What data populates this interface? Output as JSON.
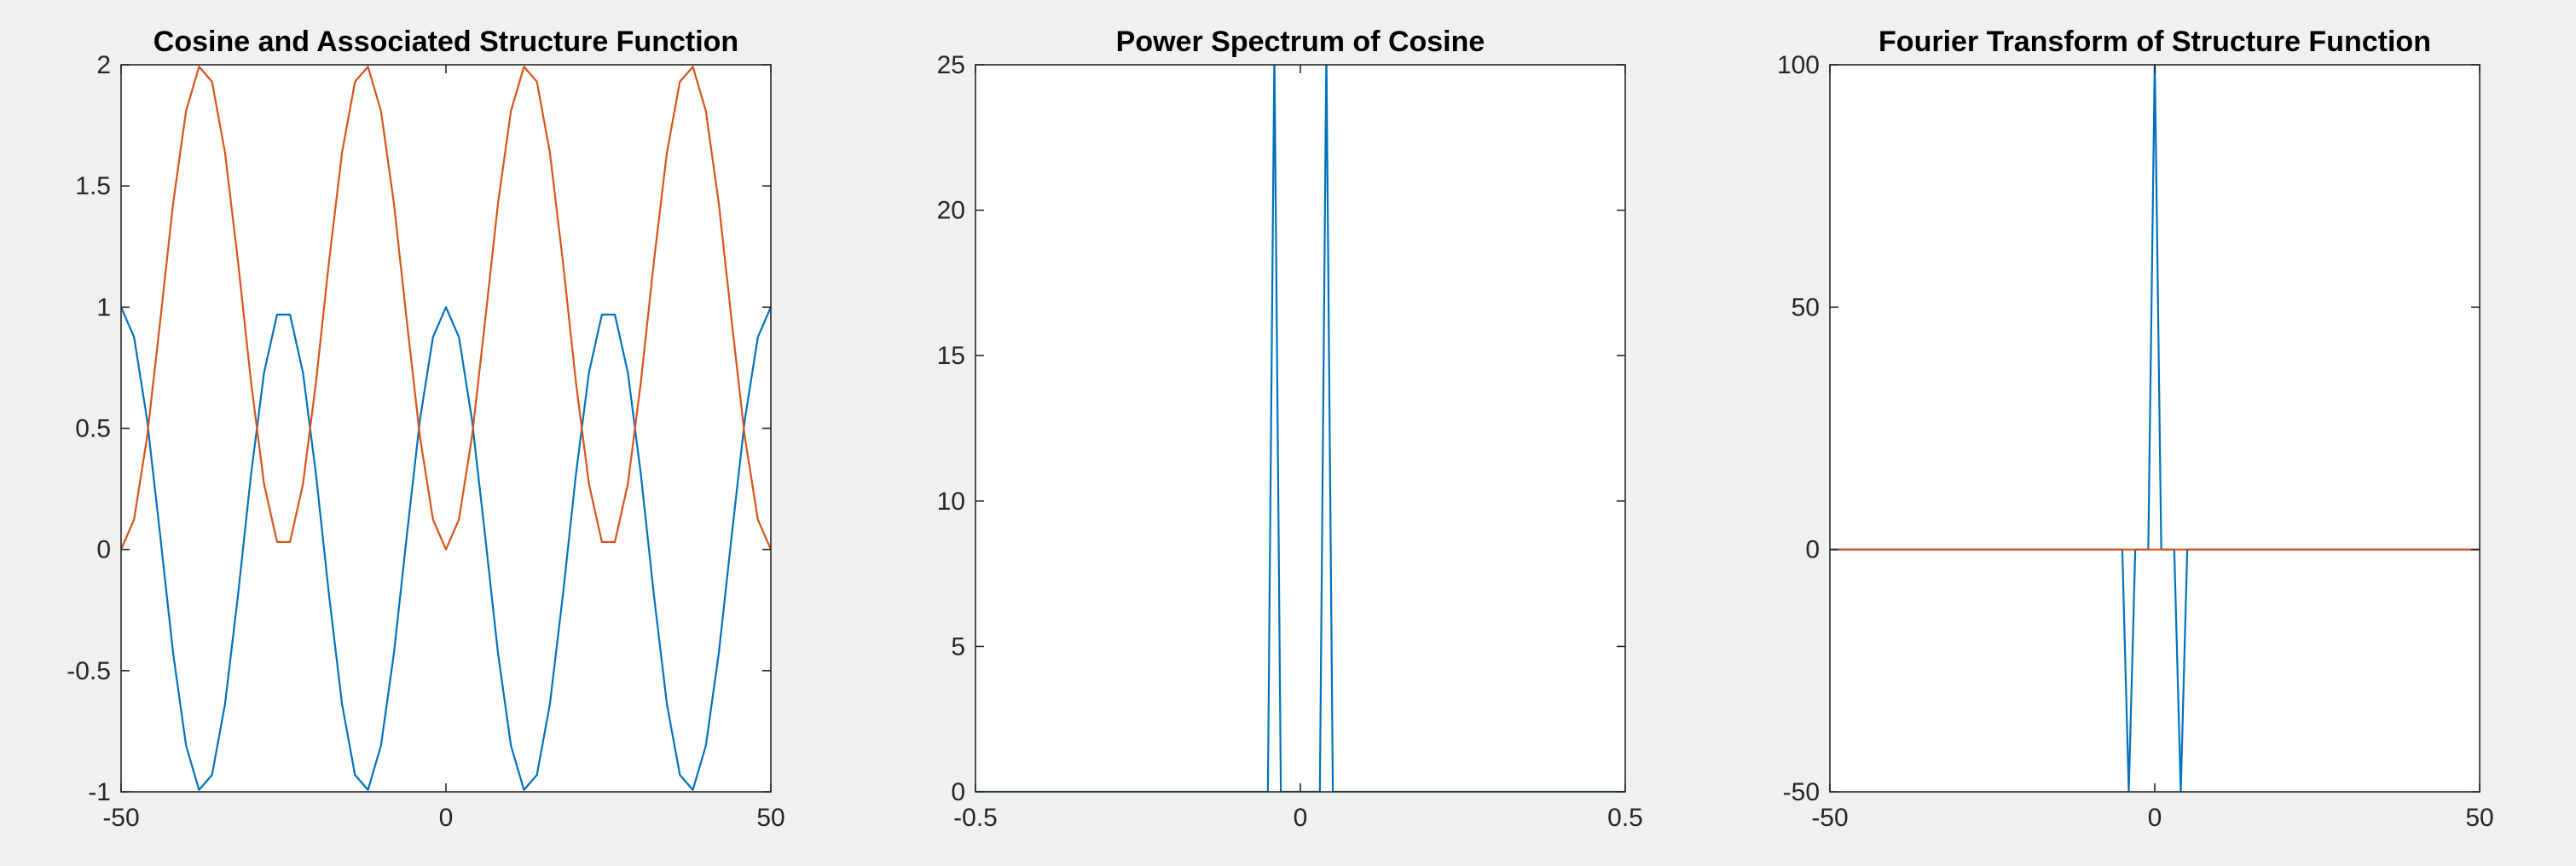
{
  "chart_data": [
    {
      "type": "line",
      "title": "Cosine and Associated Structure Function",
      "xlabel": "",
      "ylabel": "",
      "xlim": [
        -50,
        50
      ],
      "ylim": [
        -1,
        2
      ],
      "xticks": [
        -50,
        0,
        50
      ],
      "yticks": [
        -1,
        -0.5,
        0,
        0.5,
        1,
        1.5,
        2
      ],
      "xtick_labels": [
        "-50",
        "0",
        "50"
      ],
      "ytick_labels": [
        "-1",
        "-0.5",
        "0",
        "0.5",
        "1",
        "1.5",
        "2"
      ],
      "grid": false,
      "x": [
        -50,
        -48,
        -46,
        -44,
        -42,
        -40,
        -38,
        -36,
        -34,
        -32,
        -30,
        -28,
        -26,
        -24,
        -22,
        -20,
        -18,
        -16,
        -14,
        -12,
        -10,
        -8,
        -6,
        -4,
        -2,
        0,
        2,
        4,
        6,
        8,
        10,
        12,
        14,
        16,
        18,
        20,
        22,
        24,
        26,
        28,
        30,
        32,
        34,
        36,
        38,
        40,
        42,
        44,
        46,
        48,
        50
      ],
      "series": [
        {
          "color": "#0072BD",
          "values": [
            1,
            0.876,
            0.536,
            0.063,
            -0.426,
            -0.809,
            -0.992,
            -0.93,
            -0.637,
            -0.187,
            0.309,
            0.729,
            0.969,
            0.969,
            0.729,
            0.309,
            -0.187,
            -0.637,
            -0.93,
            -0.992,
            -0.809,
            -0.426,
            0.063,
            0.536,
            0.876,
            1,
            0.876,
            0.536,
            0.063,
            -0.426,
            -0.809,
            -0.992,
            -0.93,
            -0.637,
            -0.187,
            0.309,
            0.729,
            0.969,
            0.969,
            0.729,
            0.309,
            -0.187,
            -0.637,
            -0.93,
            -0.992,
            -0.809,
            -0.426,
            0.063,
            0.536,
            0.876,
            1
          ]
        },
        {
          "color": "#D95319",
          "values": [
            0,
            0.124,
            0.464,
            0.937,
            1.426,
            1.809,
            1.992,
            1.93,
            1.637,
            1.187,
            0.691,
            0.271,
            0.031,
            0.031,
            0.271,
            0.691,
            1.187,
            1.637,
            1.93,
            1.992,
            1.809,
            1.426,
            0.937,
            0.464,
            0.124,
            0,
            0.124,
            0.464,
            0.937,
            1.426,
            1.809,
            1.992,
            1.93,
            1.637,
            1.187,
            0.691,
            0.271,
            0.031,
            0.031,
            0.271,
            0.691,
            1.187,
            1.637,
            1.93,
            1.992,
            1.809,
            1.426,
            0.937,
            0.464,
            0.124,
            0
          ]
        }
      ]
    },
    {
      "type": "line",
      "title": "Power Spectrum of Cosine",
      "xlabel": "",
      "ylabel": "",
      "xlim": [
        -0.5,
        0.5
      ],
      "ylim": [
        0,
        25
      ],
      "xticks": [
        -0.5,
        0,
        0.5
      ],
      "yticks": [
        0,
        5,
        10,
        15,
        20,
        25
      ],
      "xtick_labels": [
        "-0.5",
        "0",
        "0.5"
      ],
      "ytick_labels": [
        "0",
        "5",
        "10",
        "15",
        "20",
        "25"
      ],
      "grid": false,
      "x": [
        -0.5,
        -0.05,
        -0.04,
        -0.03,
        -0.02,
        0.02,
        0.03,
        0.04,
        0.05,
        0.5
      ],
      "series": [
        {
          "color": "#0072BD",
          "values": [
            0,
            0,
            25.5,
            0,
            0,
            0,
            0,
            25.5,
            0,
            0
          ]
        }
      ]
    },
    {
      "type": "line",
      "title": "Fourier Transform of Structure Function",
      "xlabel": "",
      "ylabel": "",
      "xlim": [
        -50,
        50
      ],
      "ylim": [
        -50,
        100
      ],
      "xticks": [
        -50,
        0,
        50
      ],
      "yticks": [
        -50,
        0,
        50,
        100
      ],
      "xtick_labels": [
        "-50",
        "0",
        "50"
      ],
      "ytick_labels": [
        "-50",
        "0",
        "50",
        "100"
      ],
      "grid": false,
      "x": [
        -50,
        -5,
        -4,
        -3,
        -1,
        0,
        1,
        3,
        4,
        5,
        50
      ],
      "series": [
        {
          "color": "#0072BD",
          "values": [
            0,
            0,
            -50,
            0,
            0,
            101,
            0,
            0,
            -50,
            0,
            0
          ]
        },
        {
          "color": "#D95319",
          "values": [
            0,
            0,
            0,
            0,
            0,
            0,
            0,
            0,
            0,
            0,
            0
          ]
        }
      ]
    }
  ]
}
